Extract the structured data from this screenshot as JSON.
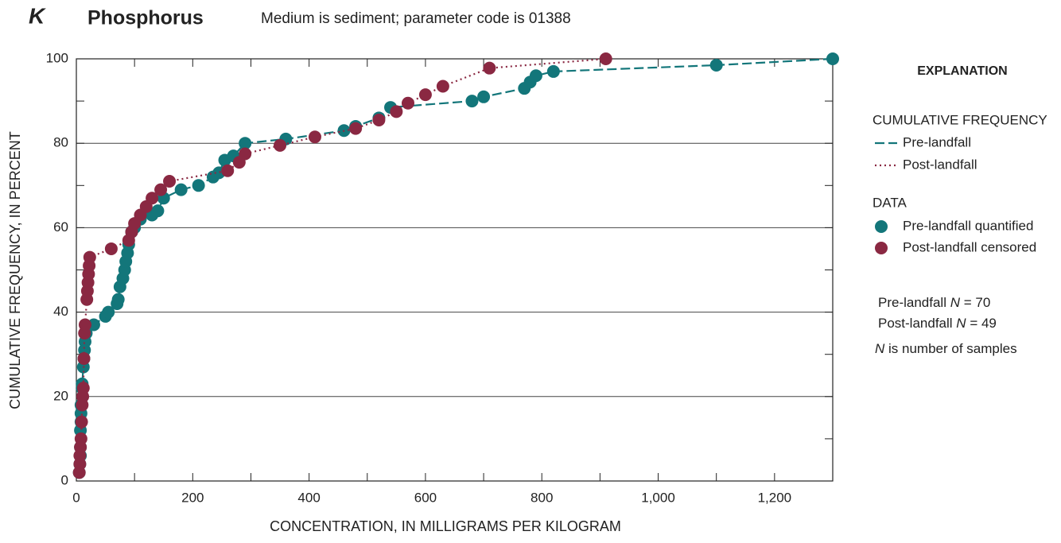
{
  "chart_data": {
    "type": "scatter",
    "panel": "K",
    "title": "Phosphorus",
    "subtitle": "Medium is sediment; parameter code is 01388",
    "x_label": "CONCENTRATION, IN MILLIGRAMS PER KILOGRAM",
    "y_label": "CUMULATIVE FREQUENCY, IN PERCENT",
    "xlim": [
      0,
      1300
    ],
    "ylim": [
      0,
      100
    ],
    "xticks": [
      0,
      200,
      400,
      600,
      800,
      {
        "value": 1000,
        "label": "1,000"
      },
      {
        "value": 1200,
        "label": "1,200"
      }
    ],
    "xticks_minor": [
      100,
      300,
      500,
      700,
      900,
      1100,
      1300
    ],
    "yticks": [
      0,
      20,
      40,
      60,
      80,
      100
    ],
    "yticks_minor": [
      10,
      30,
      50,
      70,
      90
    ],
    "grid": true,
    "series": [
      {
        "name": "Pre-landfall",
        "color": "#13767a",
        "line": "dashed",
        "x": [
          5,
          6,
          7,
          7,
          7,
          8,
          8,
          8,
          10,
          10,
          12,
          13,
          14,
          15,
          17,
          30,
          50,
          55,
          70,
          72,
          75,
          80,
          83,
          85,
          88,
          90,
          95,
          100,
          110,
          130,
          140,
          150,
          180,
          210,
          235,
          245,
          255,
          270,
          290,
          360,
          460,
          480,
          520,
          540,
          680,
          700,
          770,
          780,
          790,
          820,
          1100,
          1300
        ],
        "values": [
          2,
          4,
          6,
          8,
          12,
          14,
          16,
          18,
          22,
          23,
          27,
          29,
          31,
          33,
          35,
          37,
          39,
          40,
          42,
          43,
          46,
          48,
          50,
          52,
          54,
          56,
          59,
          60,
          62,
          63,
          64,
          67,
          69,
          70,
          72,
          73,
          76,
          77,
          80,
          81,
          83,
          84,
          86,
          88.5,
          90,
          91,
          93,
          94.5,
          96,
          97,
          98.5,
          100
        ]
      },
      {
        "name": "Post-landfall",
        "color": "#8a2842",
        "line": "dotted",
        "x": [
          5,
          6,
          6,
          7,
          8,
          9,
          10,
          11,
          12,
          13,
          14,
          15,
          18,
          19,
          20,
          21,
          22,
          23,
          60,
          90,
          95,
          100,
          110,
          120,
          130,
          145,
          160,
          260,
          280,
          290,
          350,
          410,
          480,
          520,
          550,
          570,
          600,
          630,
          710,
          910
        ],
        "values": [
          2,
          4,
          6,
          8,
          10,
          14,
          18,
          20,
          22,
          29,
          35,
          37,
          43,
          45,
          47,
          49,
          51,
          53,
          55,
          57,
          59,
          61,
          63,
          65,
          67,
          69,
          71,
          73.5,
          75.5,
          77.5,
          79.5,
          81.5,
          83.5,
          85.5,
          87.5,
          89.5,
          91.5,
          93.5,
          97.8,
          100
        ]
      }
    ],
    "legend": {
      "title": "EXPLANATION",
      "line_title": "CUMULATIVE FREQUENCY",
      "marker_title": "DATA",
      "marker_labels": [
        "Pre-landfall quantified",
        "Post-landfall censored"
      ]
    },
    "notes": [
      {
        "prefix": "Pre-landfall",
        "symbol": "N",
        "suffix": "= 70"
      },
      {
        "prefix": "Post-landfall",
        "symbol": "N",
        "suffix": "= 49"
      },
      {
        "symbol": "N",
        "suffix": "is number of samples"
      }
    ]
  }
}
